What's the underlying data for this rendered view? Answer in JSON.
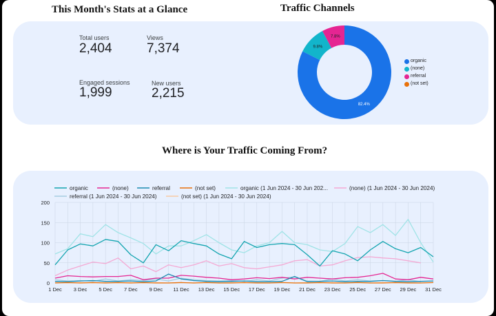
{
  "stats": {
    "title": "This Month's Stats at a Glance",
    "items": [
      {
        "label": "Total users",
        "value": "2,404"
      },
      {
        "label": "Views",
        "value": "7,374"
      },
      {
        "label": "Engaged sessions",
        "value": "1,999"
      },
      {
        "label": "New users",
        "value": "2,215"
      }
    ]
  },
  "channels": {
    "title": "Traffic Channels",
    "legend": [
      {
        "label": "organic",
        "color": "#1a73e8"
      },
      {
        "label": "(none)",
        "color": "#12b5cb"
      },
      {
        "label": "referral",
        "color": "#e52592"
      },
      {
        "label": "(not set)",
        "color": "#e8710a"
      }
    ]
  },
  "traffic": {
    "title": "Where is Your Traffic Coming From?",
    "legend": [
      {
        "label": "organic",
        "color": "#12a4af",
        "style": "solid"
      },
      {
        "label": "(none)",
        "color": "#e52592",
        "style": "solid"
      },
      {
        "label": "referral",
        "color": "#1a8ab0",
        "style": "solid"
      },
      {
        "label": "(not set)",
        "color": "#e8710a",
        "style": "solid"
      },
      {
        "label": "organic (1 Jun 2024 - 30 Jun 202...",
        "color": "#9fe3e6",
        "style": "faded"
      },
      {
        "label": "(none) (1 Jun 2024 - 30 Jun 2024)",
        "color": "#f4a8d3",
        "style": "faded"
      },
      {
        "label": "referral (1 Jun 2024 - 30 Jun 2024)",
        "color": "#a6cde0",
        "style": "faded"
      },
      {
        "label": "(not set) (1 Jun 2024 - 30 Jun 2024)",
        "color": "#f7c9a3",
        "style": "faded"
      }
    ]
  },
  "chart_data": [
    {
      "type": "pie",
      "title": "Traffic Channels",
      "categories": [
        "organic",
        "(none)",
        "referral",
        "(not set)"
      ],
      "values": [
        82.4,
        9.8,
        7.8,
        0
      ],
      "value_labels": [
        "82.4%",
        "9.8%",
        "7.8%",
        ""
      ],
      "colors": [
        "#1a73e8",
        "#12b5cb",
        "#e52592",
        "#e8710a"
      ],
      "donut": true,
      "legend_position": "right"
    },
    {
      "type": "line",
      "title": "Where is Your Traffic Coming From?",
      "x": [
        "1 Dec",
        "2 Dec",
        "3 Dec",
        "4 Dec",
        "5 Dec",
        "6 Dec",
        "7 Dec",
        "8 Dec",
        "9 Dec",
        "10 Dec",
        "11 Dec",
        "12 Dec",
        "13 Dec",
        "14 Dec",
        "15 Dec",
        "16 Dec",
        "17 Dec",
        "18 Dec",
        "19 Dec",
        "20 Dec",
        "21 Dec",
        "22 Dec",
        "23 Dec",
        "24 Dec",
        "25 Dec",
        "26 Dec",
        "27 Dec",
        "28 Dec",
        "29 Dec",
        "30 Dec",
        "31 Dec"
      ],
      "x_ticks": [
        "1 Dec",
        "3 Dec",
        "5 Dec",
        "7 Dec",
        "9 Dec",
        "11 Dec",
        "13 Dec",
        "15 Dec",
        "17 Dec",
        "19 Dec",
        "21 Dec",
        "23 Dec",
        "25 Dec",
        "27 Dec",
        "29 Dec",
        "31 Dec"
      ],
      "ylim": [
        0,
        200
      ],
      "y_ticks": [
        0,
        50,
        100,
        150,
        200
      ],
      "grid": true,
      "legend_position": "top",
      "series": [
        {
          "name": "organic",
          "color": "#12a4af",
          "width": 1.3,
          "values": [
            45,
            82,
            97,
            92,
            108,
            103,
            70,
            50,
            95,
            80,
            105,
            98,
            92,
            72,
            60,
            103,
            88,
            95,
            98,
            95,
            70,
            42,
            80,
            72,
            55,
            82,
            103,
            85,
            75,
            88,
            65
          ]
        },
        {
          "name": "(none)",
          "color": "#e52592",
          "width": 1.3,
          "values": [
            12,
            18,
            16,
            15,
            16,
            16,
            19,
            8,
            12,
            12,
            19,
            17,
            14,
            12,
            8,
            10,
            13,
            11,
            14,
            10,
            14,
            12,
            10,
            13,
            14,
            18,
            24,
            10,
            8,
            14,
            10
          ]
        },
        {
          "name": "referral",
          "color": "#1a8ab0",
          "width": 1.3,
          "values": [
            4,
            3,
            5,
            6,
            4,
            4,
            5,
            3,
            5,
            22,
            10,
            6,
            4,
            3,
            4,
            5,
            3,
            3,
            4,
            16,
            3,
            4,
            5,
            3,
            4,
            4,
            6,
            4,
            3,
            4,
            5
          ]
        },
        {
          "name": "(not set)",
          "color": "#e8710a",
          "width": 1.3,
          "values": [
            0,
            1,
            0,
            1,
            0,
            1,
            0,
            1,
            0,
            0,
            1,
            0,
            1,
            0,
            0,
            1,
            0,
            0,
            1,
            0,
            0,
            1,
            0,
            0,
            1,
            0,
            0,
            1,
            0,
            0,
            1
          ]
        },
        {
          "name": "organic (1 Jun 2024 - 30 Jun 202...",
          "color": "#9fe3e6",
          "width": 1.3,
          "values": [
            72,
            85,
            122,
            115,
            145,
            125,
            112,
            98,
            72,
            92,
            92,
            105,
            120,
            100,
            82,
            75,
            92,
            100,
            128,
            100,
            95,
            82,
            78,
            98,
            140,
            125,
            145,
            118,
            158,
            100,
            52
          ]
        },
        {
          "name": "(none) (1 Jun 2024 - 30 Jun 2024)",
          "color": "#f4a8d3",
          "width": 1.3,
          "values": [
            18,
            32,
            42,
            52,
            48,
            62,
            35,
            42,
            28,
            45,
            38,
            45,
            55,
            42,
            48,
            38,
            35,
            40,
            45,
            55,
            58,
            42,
            45,
            55,
            63,
            65,
            62,
            60,
            55,
            50,
            null
          ]
        },
        {
          "name": "referral (1 Jun 2024 - 30 Jun 2024)",
          "color": "#a6cde0",
          "width": 1.3,
          "values": [
            8,
            5,
            6,
            4,
            10,
            5,
            8,
            6,
            10,
            5,
            12,
            8,
            6,
            5,
            6,
            4,
            8,
            5,
            12,
            15,
            5,
            4,
            10,
            5,
            8,
            5,
            6,
            4,
            8,
            3,
            null
          ]
        },
        {
          "name": "(not set) (1 Jun 2024 - 30 Jun 2024)",
          "color": "#f7c9a3",
          "width": 1.3,
          "values": [
            1,
            0,
            1,
            0,
            1,
            0,
            1,
            0,
            1,
            0,
            1,
            0,
            1,
            0,
            1,
            0,
            1,
            0,
            1,
            0,
            1,
            0,
            1,
            0,
            1,
            0,
            1,
            0,
            1,
            0,
            null
          ]
        }
      ]
    }
  ]
}
